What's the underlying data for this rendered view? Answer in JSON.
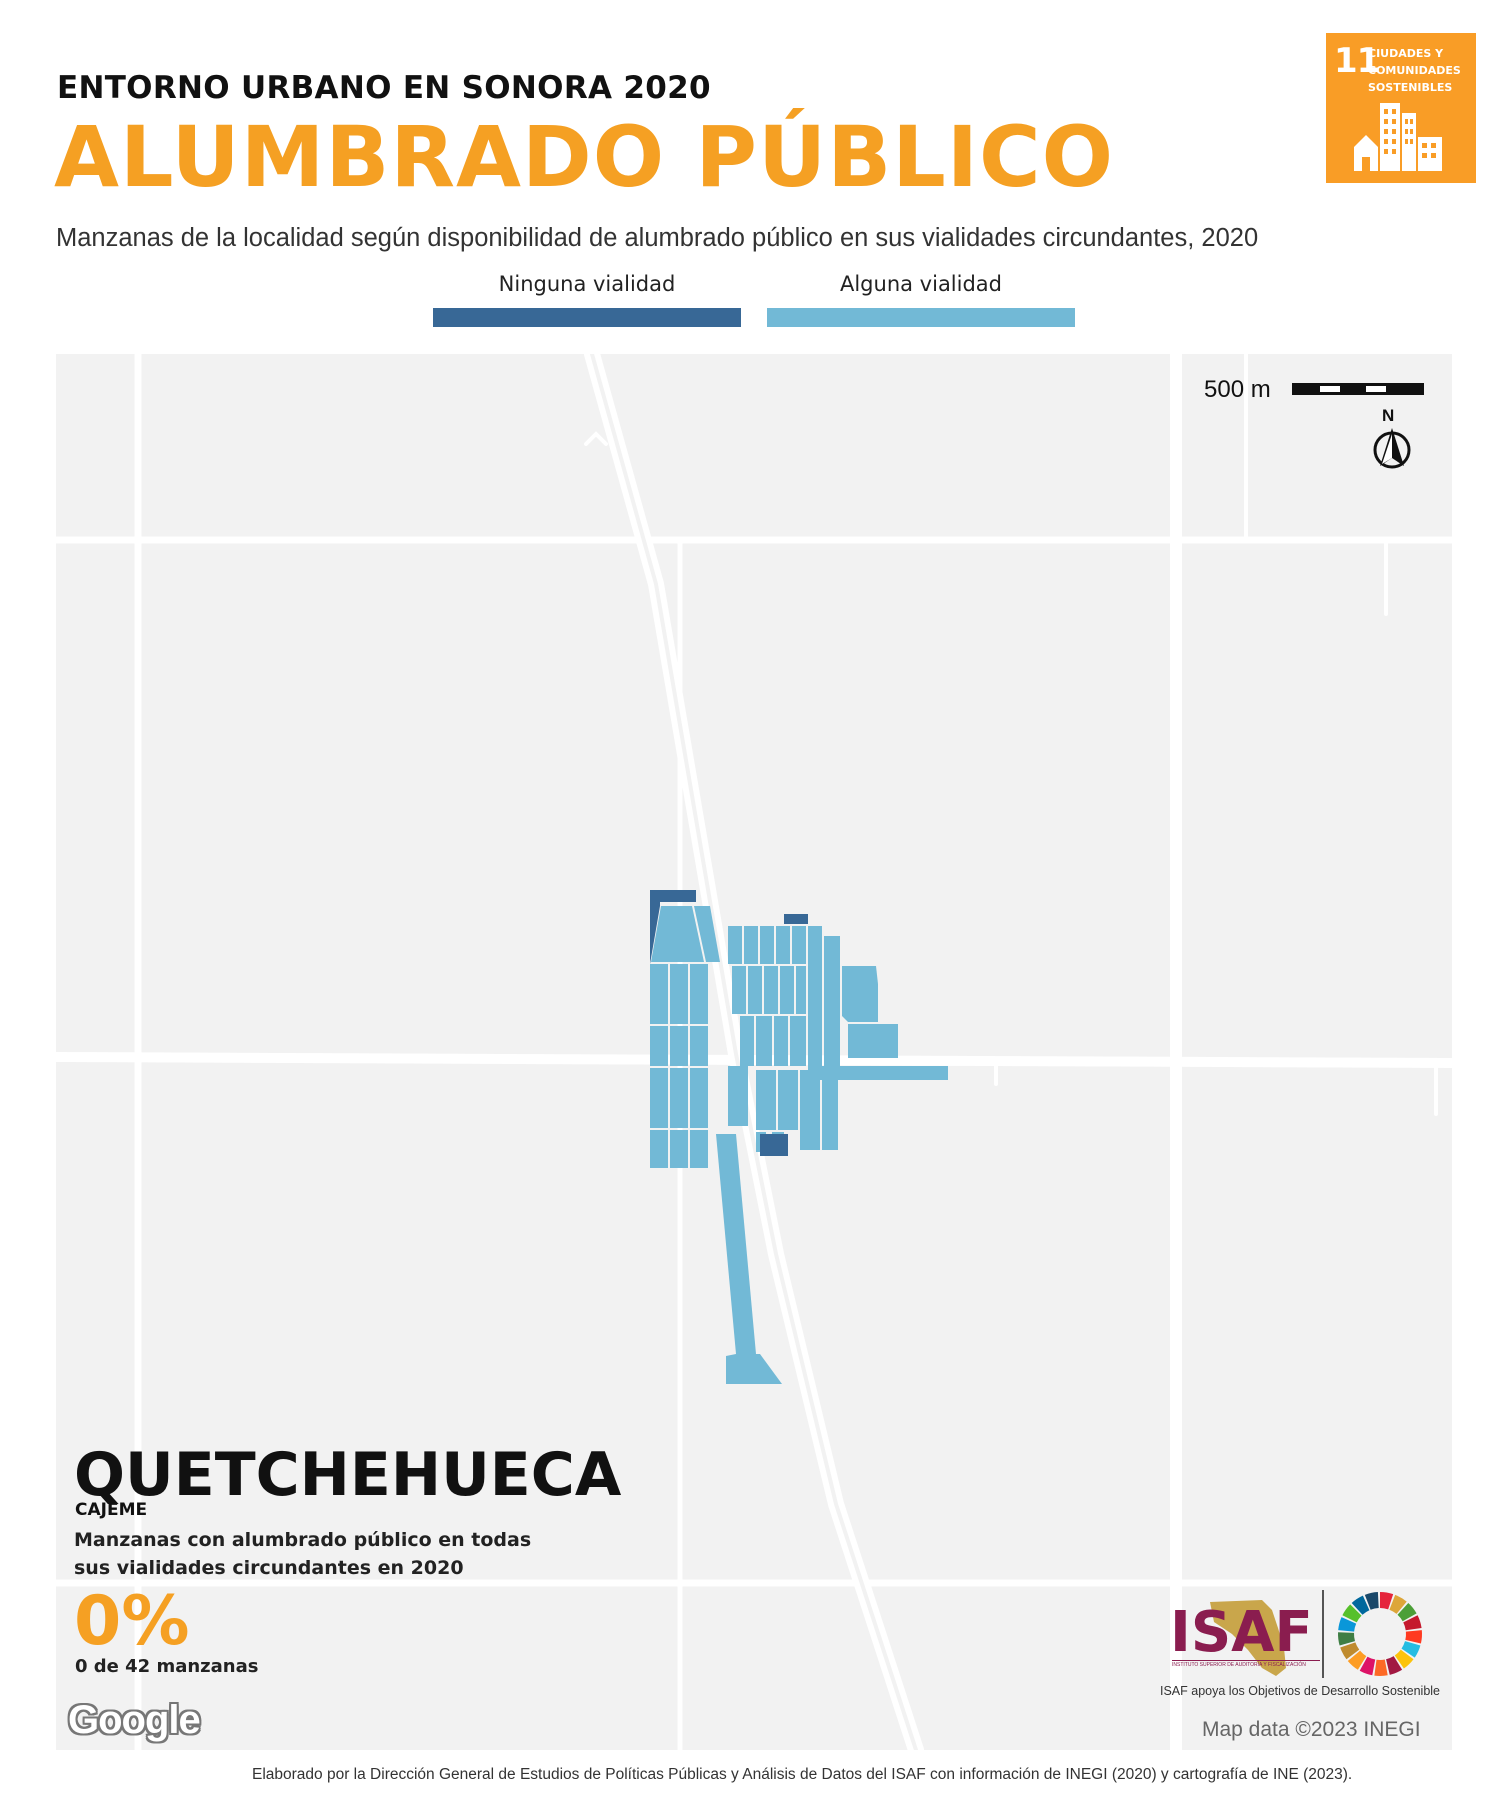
{
  "header": {
    "supertitle": "ENTORNO URBANO EN SONORA 2020",
    "title": "ALUMBRADO PÚBLICO",
    "subtitle": "Manzanas de la localidad según disponibilidad de alumbrado público en sus vialidades circundantes, 2020"
  },
  "sdg_badge": {
    "number": "11",
    "label": "CIUDADES Y COMUNIDADES SOSTENIBLES",
    "icon": "city-buildings-icon",
    "color": "#f99d26"
  },
  "legend": [
    {
      "label": "Ninguna vialidad",
      "color": "#386896"
    },
    {
      "label": "Alguna vialidad",
      "color": "#72b9d6"
    }
  ],
  "map": {
    "background_color": "#f2f2f2",
    "road_color": "#ffffff",
    "scale_label": "500 m",
    "north_label": "N",
    "attribution": "Map data ©2023 INEGI",
    "google_logo": "Google"
  },
  "locality": {
    "name": "QUETCHEHUECA",
    "municipality": "CAJEME",
    "indicator_description": "Manzanas con alumbrado público en todas sus vialidades circundantes en 2020",
    "percent": "0%",
    "count": "0 de 42 manzanas"
  },
  "logos": {
    "isaf": "ISAF",
    "isaf_full_name": "INSTITUTO SUPERIOR DE AUDITORÍA Y FISCALIZACIÓN",
    "isaf_caption": "ISAF apoya los Objetivos de Desarrollo Sostenible"
  },
  "footer": {
    "source_note": "Elaborado por la Dirección General de Estudios de Políticas Públicas y Análisis de Datos del ISAF con información de INEGI (2020) y cartografía de INE (2023)."
  }
}
